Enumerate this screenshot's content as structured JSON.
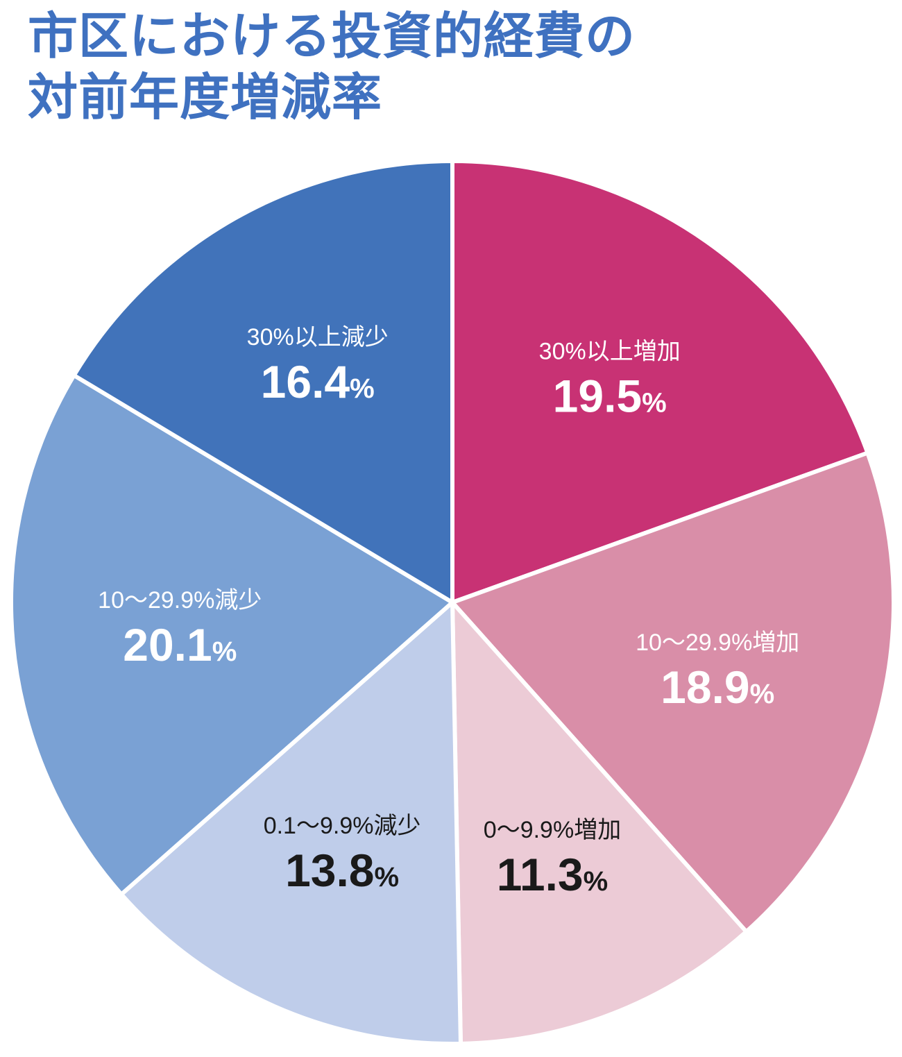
{
  "title": {
    "line1": "市区における投資的経費の",
    "line2": "対前年度増減率"
  },
  "chart_data": {
    "type": "pie",
    "title": "市区における投資的経費の対前年度増減率",
    "unit": "%",
    "start": "12 o'clock",
    "direction": "clockwise",
    "slices": [
      {
        "label": "30%以上増加",
        "value": 19.5,
        "value_text": "19.5",
        "color": "#c83274",
        "text_color": "#ffffff"
      },
      {
        "label": "10〜29.9%増加",
        "value": 18.9,
        "value_text": "18.9",
        "color": "#d98ea8",
        "text_color": "#ffffff"
      },
      {
        "label": "0〜9.9%増加",
        "value": 11.3,
        "value_text": "11.3",
        "color": "#eccbd6",
        "text_color": "#1a1a1a"
      },
      {
        "label": "0.1〜9.9%減少",
        "value": 13.8,
        "value_text": "13.8",
        "color": "#bfcdea",
        "text_color": "#1a1a1a"
      },
      {
        "label": "10〜29.9%減少",
        "value": 20.1,
        "value_text": "20.1",
        "color": "#7aa1d4",
        "text_color": "#ffffff"
      },
      {
        "label": "30%以上減少",
        "value": 16.4,
        "value_text": "16.4",
        "color": "#4173ba",
        "text_color": "#ffffff"
      }
    ]
  }
}
